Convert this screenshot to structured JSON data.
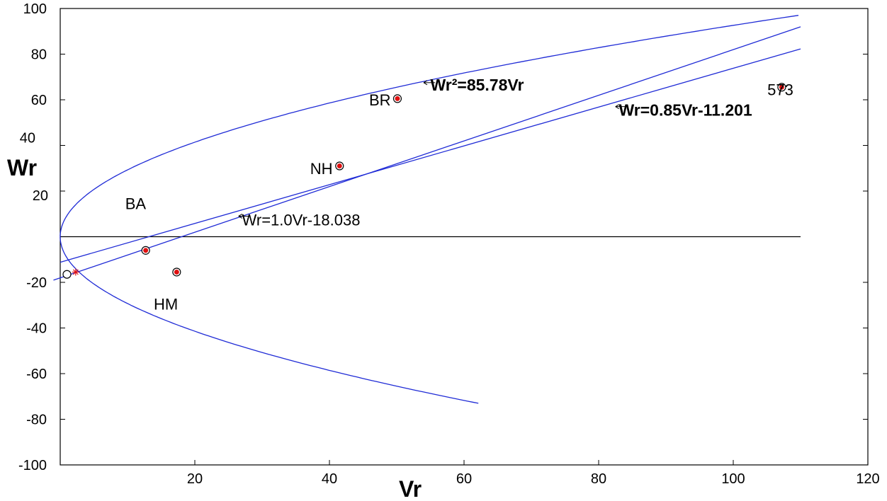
{
  "chart_data": {
    "type": "scatter",
    "xlabel": "Vr",
    "ylabel": "Wr",
    "xlim": [
      0,
      120
    ],
    "ylim": [
      -100,
      100
    ],
    "x_ticks": [
      20,
      40,
      60,
      80,
      100,
      120
    ],
    "y_ticks": [
      -100,
      -80,
      -60,
      -40,
      -20,
      20,
      40,
      60,
      80,
      100
    ],
    "x_tick_labels": [
      "20",
      "40",
      "60",
      "80",
      "100",
      "120"
    ],
    "y_tick_labels": [
      "-100",
      "-80",
      "-60",
      "-40",
      "-20",
      "20",
      "40",
      "60",
      "80",
      "100"
    ],
    "grid": false,
    "colors": {
      "curves": "#1f2bd6",
      "points": "#e01010",
      "axis": "#000000"
    },
    "parabola": {
      "equation": "Wr²=85.78Vr",
      "coef": 85.78,
      "y_range": [
        -73,
        97
      ]
    },
    "lines": [
      {
        "equation": "Wr=1.0Vr-18.038",
        "slope": 1.0,
        "intercept": -18.038,
        "x_range": [
          -1,
          110
        ]
      },
      {
        "equation": "Wr=0.85Vr-11.201",
        "slope": 0.85,
        "intercept": -11.201,
        "x_range": [
          0,
          110
        ]
      }
    ],
    "zero_line": {
      "y": 0,
      "x_range": [
        0,
        110
      ]
    },
    "points": [
      {
        "label": "BR",
        "x": 50.1,
        "y": 60.5,
        "filled": true
      },
      {
        "label": "573",
        "x": 107.2,
        "y": 65.5,
        "filled": true
      },
      {
        "label": "NH",
        "x": 41.5,
        "y": 31.0,
        "filled": true
      },
      {
        "label": "BA",
        "x": 12.7,
        "y": -6.0,
        "filled": true
      },
      {
        "label": "HM",
        "x": 17.3,
        "y": -15.5,
        "filled": true
      },
      {
        "label": "",
        "x": 1.0,
        "y": -16.5,
        "filled": false
      }
    ],
    "point_labels": [
      {
        "text": "BR",
        "x": 47.5,
        "y": 60.0
      },
      {
        "text": "573",
        "x": 107.0,
        "y": 64.5
      },
      {
        "text": "NH",
        "x": 38.8,
        "y": 30.0
      },
      {
        "text": "BA",
        "x": 11.2,
        "y": 14.5
      },
      {
        "text": "HM",
        "x": 15.7,
        "y": -29.5
      }
    ],
    "star": {
      "x": 2.3,
      "y": -15.5
    },
    "equation_labels": [
      {
        "text": "Wr²=85.78Vr",
        "x": 55.0,
        "y": 64.0,
        "bold": true,
        "arrow_to": [
          54.0,
          67.5
        ]
      },
      {
        "text": "Wr=0.85Vr-11.201",
        "x": 83.0,
        "y": 53.0,
        "bold": true,
        "arrow_to": [
          82.5,
          57.0
        ]
      },
      {
        "text": "Wr=1.0Vr-18.038",
        "x": 27.0,
        "y": 5.0,
        "bold": false,
        "arrow_to": [
          26.5,
          9.0
        ]
      }
    ]
  }
}
